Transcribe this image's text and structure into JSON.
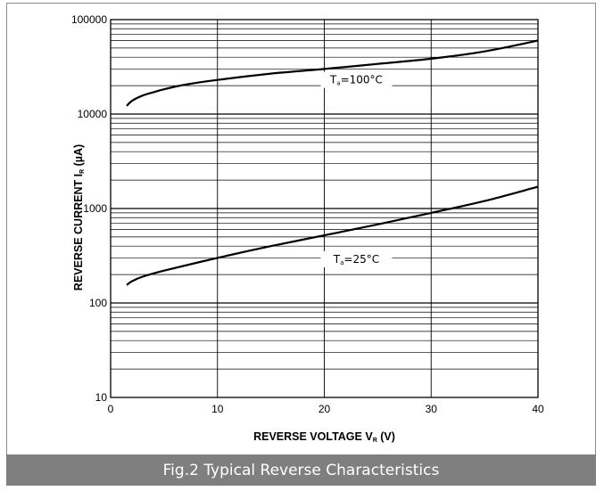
{
  "caption": "Fig.2 Typical Reverse Characteristics",
  "chart_data": {
    "type": "line",
    "x_scale": "linear",
    "y_scale": "log",
    "xlim": [
      0,
      40
    ],
    "ylim": [
      10,
      100000
    ],
    "x_ticks": [
      0,
      10,
      20,
      30,
      40
    ],
    "y_ticks": [
      10,
      100,
      1000,
      10000,
      100000
    ],
    "x_tick_labels": [
      "0",
      "10",
      "20",
      "30",
      "40"
    ],
    "y_tick_labels": [
      "10",
      "100",
      "1000",
      "10000",
      "100000"
    ],
    "xlabel_main": "REVERSE VOLTAGE  V",
    "xlabel_sub": "R",
    "xlabel_unit": " (V)",
    "ylabel_main": "REVERSE CURRENT  I",
    "ylabel_sub": "R",
    "ylabel_unit": " (µA)",
    "grid": true,
    "series": [
      {
        "label_main": "T",
        "label_sub": "a",
        "label_rest": "=100°C",
        "label_at": [
          23,
          23000
        ],
        "x": [
          1.5,
          2,
          3,
          4,
          5,
          7,
          10,
          15,
          20,
          25,
          30,
          35,
          40
        ],
        "y": [
          12200,
          13800,
          15700,
          17000,
          18300,
          20500,
          23000,
          26800,
          30000,
          34000,
          38500,
          46000,
          60000
        ]
      },
      {
        "label_main": "T",
        "label_sub": "a",
        "label_rest": "=25°C",
        "label_at": [
          23,
          290
        ],
        "x": [
          1.5,
          2,
          3,
          5,
          10,
          15,
          20,
          25,
          30,
          35,
          40
        ],
        "y": [
          155,
          170,
          190,
          220,
          300,
          400,
          520,
          680,
          900,
          1200,
          1700
        ]
      }
    ]
  }
}
